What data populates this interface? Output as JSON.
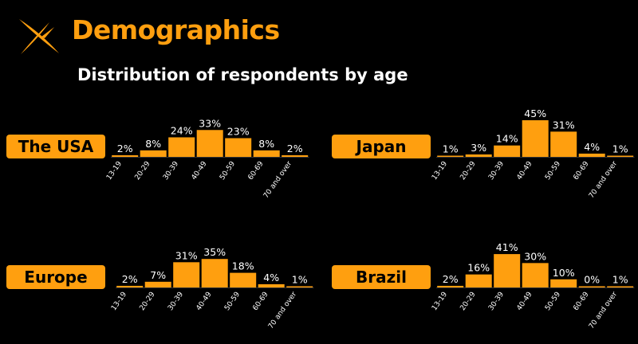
{
  "header": {
    "title": "Demographics",
    "icon": "sparkle-icon",
    "accent_color": "#FF9F0F"
  },
  "subtitle": "Distribution of respondents by age",
  "chart_data": [
    {
      "type": "bar",
      "title": "The USA",
      "categories": [
        "13-19",
        "20-29",
        "30-39",
        "40-49",
        "50-59",
        "60-69",
        "70 and over"
      ],
      "values": [
        2,
        8,
        24,
        33,
        23,
        8,
        2
      ],
      "labels": [
        "2%",
        "8%",
        "24%",
        "33%",
        "23%",
        "8%",
        "2%"
      ],
      "ylim": [
        0,
        45
      ]
    },
    {
      "type": "bar",
      "title": "Japan",
      "categories": [
        "13-19",
        "20-29",
        "30-39",
        "40-49",
        "50-59",
        "60-69",
        "70 and over"
      ],
      "values": [
        1,
        3,
        14,
        45,
        31,
        4,
        1
      ],
      "labels": [
        "1%",
        "3%",
        "14%",
        "45%",
        "31%",
        "4%",
        "1%"
      ],
      "ylim": [
        0,
        45
      ]
    },
    {
      "type": "bar",
      "title": "Europe",
      "categories": [
        "13-19",
        "20-29",
        "30-39",
        "40-49",
        "50-59",
        "60-69",
        "70 and over"
      ],
      "values": [
        2,
        7,
        31,
        35,
        18,
        4,
        1
      ],
      "labels": [
        "2%",
        "7%",
        "31%",
        "35%",
        "18%",
        "4%",
        "1%"
      ],
      "ylim": [
        0,
        45
      ]
    },
    {
      "type": "bar",
      "title": "Brazil",
      "categories": [
        "13-19",
        "20-29",
        "30-39",
        "40-49",
        "50-59",
        "60-69",
        "70 and over"
      ],
      "values": [
        2,
        16,
        41,
        30,
        10,
        0,
        1
      ],
      "labels": [
        "2%",
        "16%",
        "41%",
        "30%",
        "10%",
        "0%",
        "1%"
      ],
      "ylim": [
        0,
        45
      ]
    }
  ]
}
